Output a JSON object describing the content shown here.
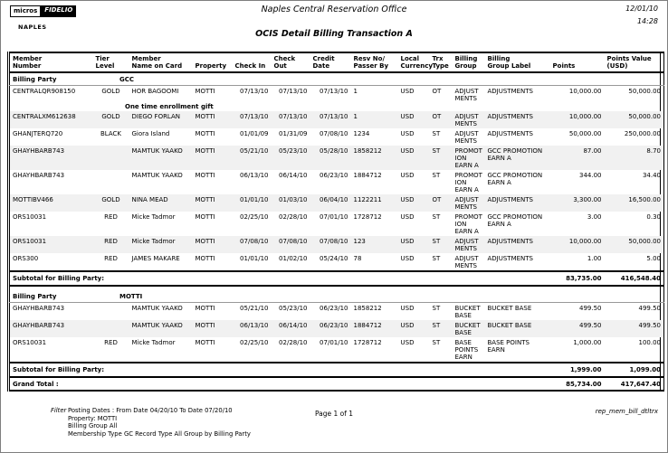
{
  "page": {
    "logo": {
      "part1": "micros",
      "part2": "FIDELIO",
      "location": "NAPLES"
    },
    "header": {
      "office_title": "Naples Central Reservation Office",
      "report_title": "OCIS Detail Billing Transaction A",
      "date": "12/01/10",
      "time": "14:28"
    },
    "footer": {
      "filter_label": "Filter",
      "filter_lines": [
        "Posting Dates :   From Date 04/20/10   To Date 07/20/10",
        "Property:   MOTTI",
        "Billing Group All",
        "Membership Type GC   Record Type All   Group by Billing Party"
      ],
      "page_indicator": "Page 1 of 1",
      "report_id": "rep_mem_bill_dtltrx"
    }
  },
  "table": {
    "columns": [
      {
        "key": "member",
        "label": "Member\nNumber",
        "align": "left",
        "width": 92
      },
      {
        "key": "tier",
        "label": "Tier\nLevel",
        "align": "center",
        "width": 40
      },
      {
        "key": "name",
        "label": "Member\nName on Card",
        "align": "left",
        "width": 70
      },
      {
        "key": "property",
        "label": "Property",
        "align": "left",
        "width": 44,
        "header_align": "center"
      },
      {
        "key": "check_in",
        "label": "Check In",
        "align": "right",
        "width": 43
      },
      {
        "key": "check_out",
        "label": "Check Out",
        "align": "right",
        "width": 43
      },
      {
        "key": "credit_date",
        "label": "Credit\nDate",
        "align": "right",
        "width": 45,
        "header_align": "left"
      },
      {
        "key": "resv",
        "label": "Resv No/\nPasser By",
        "align": "left",
        "width": 52
      },
      {
        "key": "currency",
        "label": "Local\nCurrency",
        "align": "left",
        "width": 35
      },
      {
        "key": "trx",
        "label": "Trx\nType",
        "align": "left",
        "width": 25
      },
      {
        "key": "group",
        "label": "Billing\nGroup",
        "align": "left",
        "width": 36
      },
      {
        "key": "group_label",
        "label": "Billing\nGroup Label",
        "align": "left",
        "width": 72
      },
      {
        "key": "points",
        "label": "Points",
        "align": "right",
        "width": 60
      },
      {
        "key": "value",
        "label": "Points Value\n(USD)",
        "align": "right",
        "width": 66,
        "header_align": "center"
      }
    ],
    "section_label": "Billing Party",
    "subtotal_label": "Subtotal for Billing Party:",
    "sections": [
      {
        "name": "GCC",
        "rows": [
          {
            "member": "CENTRALQR908150",
            "tier": "GOLD",
            "name": "HOR BAGOOMI",
            "property": "MOTTI",
            "check_in": "07/13/10",
            "check_out": "07/13/10",
            "credit_date": "07/13/10",
            "resv": "1",
            "currency": "USD",
            "trx": "OT",
            "group": "ADJUST\nMENTS",
            "group_label": "ADJUSTMENTS",
            "points": "10,000.00",
            "value": "50,000.00",
            "note": "One time enrollment gift"
          },
          {
            "member": "CENTRALXM612638",
            "tier": "GOLD",
            "name": "DIEGO FORLAN",
            "property": "MOTTI",
            "check_in": "07/13/10",
            "check_out": "07/13/10",
            "credit_date": "07/13/10",
            "resv": "1",
            "currency": "USD",
            "trx": "OT",
            "group": "ADJUST\nMENTS",
            "group_label": "ADJUSTMENTS",
            "points": "10,000.00",
            "value": "50,000.00"
          },
          {
            "member": "GHANJTERQ720",
            "tier": "BLACK",
            "name": "Giora Island",
            "property": "MOTTI",
            "check_in": "01/01/09",
            "check_out": "01/31/09",
            "credit_date": "07/08/10",
            "resv": "1234",
            "currency": "USD",
            "trx": "ST",
            "group": "ADJUST\nMENTS",
            "group_label": "ADJUSTMENTS",
            "points": "50,000.00",
            "value": "250,000.00"
          },
          {
            "member": "GHAYHBARB743",
            "tier": "",
            "name": "MAMTUK YAAKO",
            "property": "MOTTI",
            "check_in": "05/21/10",
            "check_out": "05/23/10",
            "credit_date": "05/28/10",
            "resv": "1858212",
            "currency": "USD",
            "trx": "ST",
            "group": "PROMOT\nION\nEARN A",
            "group_label": "GCC PROMOTION\nEARN A",
            "points": "87.00",
            "value": "8.70"
          },
          {
            "member": "GHAYHBARB743",
            "tier": "",
            "name": "MAMTUK YAAKO",
            "property": "MOTTI",
            "check_in": "06/13/10",
            "check_out": "06/14/10",
            "credit_date": "06/23/10",
            "resv": "1884712",
            "currency": "USD",
            "trx": "ST",
            "group": "PROMOT\nION\nEARN A",
            "group_label": "GCC PROMOTION\nEARN A",
            "points": "344.00",
            "value": "34.40"
          },
          {
            "member": "MOTTIBV466",
            "tier": "GOLD",
            "name": "NINA MEAD",
            "property": "MOTTI",
            "check_in": "01/01/10",
            "check_out": "01/03/10",
            "credit_date": "06/04/10",
            "resv": "1122211",
            "currency": "USD",
            "trx": "OT",
            "group": "ADJUST\nMENTS",
            "group_label": "ADJUSTMENTS",
            "points": "3,300.00",
            "value": "16,500.00"
          },
          {
            "member": "ORS10031",
            "tier": "RED",
            "name": "Micke Tadmor",
            "property": "MOTTI",
            "check_in": "02/25/10",
            "check_out": "02/28/10",
            "credit_date": "07/01/10",
            "resv": "1728712",
            "currency": "USD",
            "trx": "ST",
            "group": "PROMOT\nION\nEARN A",
            "group_label": "GCC PROMOTION\nEARN A",
            "points": "3.00",
            "value": "0.30"
          },
          {
            "member": "ORS10031",
            "tier": "RED",
            "name": "Micke Tadmor",
            "property": "MOTTI",
            "check_in": "07/08/10",
            "check_out": "07/08/10",
            "credit_date": "07/08/10",
            "resv": "123",
            "currency": "USD",
            "trx": "ST",
            "group": "ADJUST\nMENTS",
            "group_label": "ADJUSTMENTS",
            "points": "10,000.00",
            "value": "50,000.00"
          },
          {
            "member": "ORS300",
            "tier": "RED",
            "name": "JAMES MAKARE",
            "property": "MOTTI",
            "check_in": "01/01/10",
            "check_out": "01/02/10",
            "credit_date": "05/24/10",
            "resv": "78",
            "currency": "USD",
            "trx": "ST",
            "group": "ADJUST\nMENTS",
            "group_label": "ADJUSTMENTS",
            "points": "1.00",
            "value": "5.00"
          }
        ],
        "subtotal": {
          "points": "83,735.00",
          "value": "416,548.40"
        }
      },
      {
        "name": "MOTTI",
        "rows": [
          {
            "member": "GHAYHBARB743",
            "tier": "",
            "name": "MAMTUK YAAKO",
            "property": "MOTTI",
            "check_in": "05/21/10",
            "check_out": "05/23/10",
            "credit_date": "06/23/10",
            "resv": "1858212",
            "currency": "USD",
            "trx": "ST",
            "group": "BUCKET\nBASE",
            "group_label": "BUCKET BASE",
            "points": "499.50",
            "value": "499.50"
          },
          {
            "member": "GHAYHBARB743",
            "tier": "",
            "name": "MAMTUK YAAKO",
            "property": "MOTTI",
            "check_in": "06/13/10",
            "check_out": "06/14/10",
            "credit_date": "06/23/10",
            "resv": "1884712",
            "currency": "USD",
            "trx": "ST",
            "group": "BUCKET\nBASE",
            "group_label": "BUCKET BASE",
            "points": "499.50",
            "value": "499.50"
          },
          {
            "member": "ORS10031",
            "tier": "RED",
            "name": "Micke Tadmor",
            "property": "MOTTI",
            "check_in": "02/25/10",
            "check_out": "02/28/10",
            "credit_date": "07/01/10",
            "resv": "1728712",
            "currency": "USD",
            "trx": "ST",
            "group": "BASE\nPOINTS\nEARN",
            "group_label": "BASE POINTS\nEARN",
            "points": "1,000.00",
            "value": "100.00"
          }
        ],
        "subtotal": {
          "points": "1,999.00",
          "value": "1,099.00"
        }
      }
    ],
    "grand_total": {
      "label": "Grand Total :",
      "points": "85,734.00",
      "value": "417,647.40"
    }
  },
  "colors": {
    "stripe": "#f1f1f1",
    "border": "#000000"
  }
}
